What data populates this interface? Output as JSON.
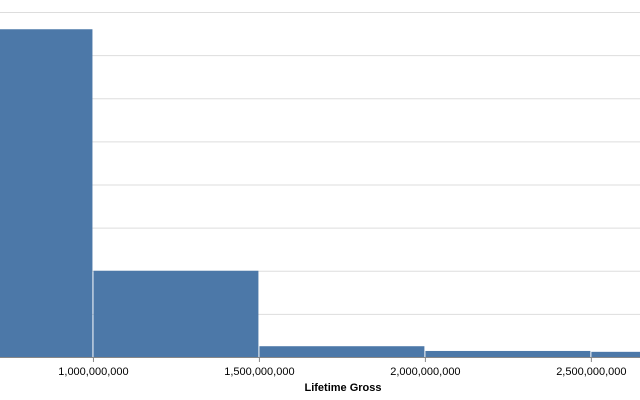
{
  "chart_data": {
    "type": "histogram",
    "x_label": "Lifetime Gross",
    "bins": [
      500000000,
      1000000000,
      1500000000,
      2000000000,
      2500000000,
      3000000000
    ],
    "values": [
      76,
      20,
      2.5,
      1.4,
      1.2
    ],
    "color": "#4c78a8",
    "xlim": [
      720000000,
      2648000000
    ],
    "xticks": [
      {
        "value": 1000000000,
        "label": "1,000,000,000"
      },
      {
        "value": 1500000000,
        "label": "1,500,000,000"
      },
      {
        "value": 2000000000,
        "label": "2,000,000,000"
      },
      {
        "value": 2500000000,
        "label": "2,500,000,000"
      }
    ],
    "ylim": [
      0,
      80
    ],
    "yticks": [
      0,
      10,
      20,
      30,
      40,
      50,
      60,
      70,
      80
    ],
    "grid": true
  }
}
